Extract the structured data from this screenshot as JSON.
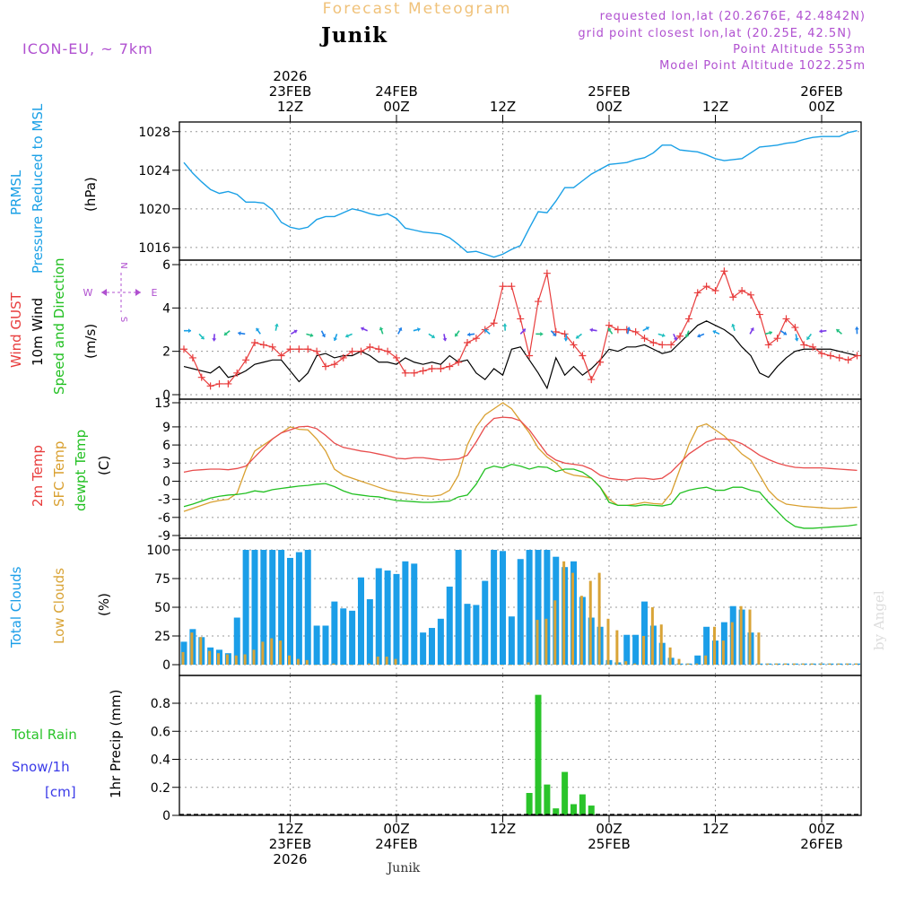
{
  "header": {
    "super_title": "Forecast Meteogram",
    "location": "Junik",
    "model": "ICON-EU, ~ 7km",
    "requested": "requested lon,lat (20.2676E, 42.4842N)",
    "grid_point": "grid point closest lon,lat (20.25E, 42.5N)",
    "point_alt": "Point Altitude 553m",
    "model_alt": "Model Point Altitude 1022.25m",
    "footer_location": "Junik",
    "watermark": "by Angel"
  },
  "colors": {
    "pressure": "#1aa0e6",
    "gust": "#e83c3c",
    "wind10m": "#000000",
    "temp2m": "#e84c4c",
    "sfc": "#d9a030",
    "dewpt": "#22c022",
    "total_cloud": "#1b9ee8",
    "low_cloud": "#d9a437",
    "rain": "#2ac42a",
    "snow": "#3a3ae8",
    "label_purple": "#b050d0"
  },
  "chart_data": [
    {
      "type": "line",
      "title": "PRMSL Pressure Reduced to MSL",
      "ylabel": "(hPa)",
      "ylim": [
        1014.5,
        1029
      ],
      "yticks": [
        1016,
        1020,
        1024,
        1028
      ],
      "x": [
        0,
        1,
        2,
        3,
        4,
        5,
        6,
        7,
        8,
        9,
        10,
        11,
        12,
        13,
        14,
        15,
        16,
        17,
        18,
        19,
        20,
        21,
        22,
        23,
        24,
        25,
        26,
        27,
        28,
        29,
        30,
        31,
        32,
        33,
        34,
        35,
        36,
        37,
        38,
        39,
        40,
        41,
        42,
        43,
        44,
        45,
        46,
        47,
        48,
        49,
        50,
        51,
        52,
        53,
        54,
        55,
        56,
        57,
        58,
        59,
        60,
        61,
        62,
        63,
        64,
        65,
        66,
        67,
        68,
        69,
        70,
        71,
        72,
        73,
        74,
        75,
        76
      ],
      "values": [
        1024.8,
        1023.7,
        1022.8,
        1022.0,
        1021.6,
        1021.8,
        1021.5,
        1020.7,
        1020.7,
        1020.6,
        1019.9,
        1018.6,
        1018.1,
        1017.9,
        1018.1,
        1018.9,
        1019.2,
        1019.2,
        1019.6,
        1020.0,
        1019.8,
        1019.5,
        1019.3,
        1019.5,
        1019.0,
        1018.0,
        1017.8,
        1017.6,
        1017.5,
        1017.4,
        1017.0,
        1016.3,
        1015.5,
        1015.6,
        1015.3,
        1015.0,
        1015.3,
        1015.8,
        1016.2,
        1018.0,
        1019.7,
        1019.6,
        1020.8,
        1022.2,
        1022.2,
        1022.9,
        1023.6,
        1024.1,
        1024.6,
        1024.7,
        1024.8,
        1025.1,
        1025.3,
        1025.8,
        1026.6,
        1026.6,
        1026.1,
        1026.0,
        1025.9,
        1025.6,
        1025.2,
        1025.0,
        1025.1,
        1025.2,
        1025.8,
        1026.4,
        1026.5,
        1026.6,
        1026.8,
        1026.9,
        1027.2,
        1027.4,
        1027.5,
        1027.5,
        1027.5,
        1027.9,
        1028.1
      ]
    },
    {
      "type": "line",
      "title": "Wind GUST / 10m Wind Speed and Direction",
      "ylabel": "(m/s)",
      "ylim": [
        0,
        6.1
      ],
      "yticks": [
        0,
        2,
        4,
        6
      ],
      "compass": {
        "n": "N",
        "s": "S",
        "w": "W",
        "e": "E"
      },
      "series": [
        {
          "name": "Wind GUST",
          "values": [
            2.1,
            1.7,
            0.8,
            0.4,
            0.5,
            0.5,
            1.0,
            1.6,
            2.4,
            2.3,
            2.2,
            1.8,
            2.1,
            2.1,
            2.1,
            2.0,
            1.3,
            1.4,
            1.7,
            2.0,
            2.0,
            2.2,
            2.1,
            2.0,
            1.7,
            1.0,
            1.0,
            1.1,
            1.2,
            1.2,
            1.3,
            1.5,
            2.4,
            2.6,
            3.0,
            3.3,
            5.0,
            5.0,
            3.5,
            1.8,
            4.3,
            5.6,
            2.9,
            2.8,
            2.3,
            1.8,
            0.7,
            1.5,
            3.2,
            3.0,
            3.0,
            2.9,
            2.6,
            2.4,
            2.3,
            2.3,
            2.7,
            3.5,
            4.7,
            5.0,
            4.8,
            5.7,
            4.5,
            4.8,
            4.6,
            3.7,
            2.3,
            2.6,
            3.5,
            3.1,
            2.3,
            2.2,
            1.9,
            1.8,
            1.7,
            1.6,
            1.8
          ]
        },
        {
          "name": "10m Wind",
          "values": [
            1.3,
            1.2,
            1.1,
            1.0,
            1.3,
            0.8,
            0.9,
            1.1,
            1.4,
            1.5,
            1.6,
            1.6,
            1.1,
            0.6,
            1.0,
            1.8,
            1.9,
            1.7,
            1.8,
            1.8,
            2.0,
            1.8,
            1.5,
            1.5,
            1.4,
            1.7,
            1.5,
            1.4,
            1.5,
            1.4,
            1.8,
            1.5,
            1.6,
            1.0,
            0.7,
            1.2,
            0.9,
            2.1,
            2.2,
            1.6,
            1.0,
            0.3,
            1.7,
            0.9,
            1.3,
            0.9,
            1.2,
            1.6,
            2.1,
            2.0,
            2.2,
            2.2,
            2.3,
            2.1,
            1.9,
            2.0,
            2.4,
            2.8,
            3.2,
            3.4,
            3.2,
            3.0,
            2.7,
            2.2,
            1.8,
            1.0,
            0.8,
            1.3,
            1.7,
            2.0,
            2.1,
            2.1,
            2.1,
            2.1,
            2.0,
            1.9,
            1.8
          ]
        }
      ],
      "wind_barbs_count": 45
    },
    {
      "type": "line",
      "title": "2m Temp / SFC Temp / dewpt Temp",
      "ylabel": "(C)",
      "ylim": [
        -9,
        13
      ],
      "yticks": [
        -9,
        -6,
        -3,
        0,
        3,
        6,
        9,
        13
      ],
      "series": [
        {
          "name": "2m Temp",
          "values": [
            1.5,
            1.8,
            1.9,
            2.0,
            2.0,
            1.9,
            2.1,
            2.5,
            4.0,
            5.5,
            7.0,
            8.0,
            8.5,
            9.0,
            9.1,
            8.7,
            7.6,
            6.3,
            5.6,
            5.3,
            5.0,
            4.8,
            4.5,
            4.2,
            3.8,
            3.7,
            3.9,
            3.9,
            3.7,
            3.5,
            3.6,
            3.7,
            4.3,
            6.5,
            9.0,
            10.4,
            10.6,
            10.5,
            10.0,
            8.5,
            6.5,
            4.5,
            3.5,
            3.0,
            2.8,
            2.6,
            2.0,
            1.0,
            0.5,
            0.3,
            0.2,
            0.5,
            0.5,
            0.3,
            0.5,
            1.5,
            3.0,
            4.5,
            5.5,
            6.5,
            7.0,
            7.0,
            6.8,
            6.2,
            5.3,
            4.3,
            3.6,
            3.0,
            2.6,
            2.3,
            2.2,
            2.2,
            2.2,
            2.1,
            2.0,
            1.9,
            1.8
          ]
        },
        {
          "name": "SFC Temp",
          "values": [
            -5.0,
            -4.5,
            -4.0,
            -3.5,
            -3.2,
            -3.0,
            -2.0,
            2.0,
            5.0,
            6.0,
            7.0,
            8.0,
            9.0,
            8.6,
            8.5,
            7.0,
            5.0,
            2.0,
            1.0,
            0.5,
            0.0,
            -0.5,
            -1.0,
            -1.5,
            -1.8,
            -2.0,
            -2.2,
            -2.4,
            -2.5,
            -2.3,
            -1.5,
            1.0,
            6.0,
            9.0,
            11.0,
            12.0,
            13.0,
            12.0,
            10.0,
            8.0,
            5.5,
            4.0,
            3.0,
            1.5,
            1.0,
            0.8,
            0.5,
            -1.0,
            -3.0,
            -4.0,
            -4.0,
            -3.8,
            -3.5,
            -3.7,
            -3.8,
            -2.0,
            2.0,
            6.0,
            9.0,
            9.5,
            8.5,
            7.5,
            6.0,
            4.5,
            3.5,
            1.0,
            -1.5,
            -3.0,
            -3.8,
            -4.0,
            -4.2,
            -4.3,
            -4.4,
            -4.5,
            -4.5,
            -4.4,
            -4.3
          ]
        },
        {
          "name": "dewpt Temp",
          "values": [
            -4.2,
            -3.8,
            -3.3,
            -2.8,
            -2.5,
            -2.3,
            -2.2,
            -2.0,
            -1.6,
            -1.8,
            -1.4,
            -1.2,
            -1.0,
            -0.8,
            -0.7,
            -0.5,
            -0.4,
            -0.9,
            -1.6,
            -2.1,
            -2.3,
            -2.5,
            -2.6,
            -2.9,
            -3.2,
            -3.3,
            -3.4,
            -3.5,
            -3.5,
            -3.4,
            -3.3,
            -2.6,
            -2.3,
            -0.5,
            2.0,
            2.5,
            2.2,
            2.8,
            2.5,
            2.0,
            2.4,
            2.3,
            1.6,
            2.0,
            2.0,
            1.5,
            0.5,
            -1.0,
            -3.5,
            -4.0,
            -4.0,
            -4.1,
            -3.9,
            -4.0,
            -4.1,
            -3.8,
            -2.0,
            -1.5,
            -1.2,
            -1.0,
            -1.5,
            -1.5,
            -1.0,
            -1.0,
            -1.5,
            -1.8,
            -3.5,
            -5.0,
            -6.5,
            -7.5,
            -7.8,
            -7.8,
            -7.7,
            -7.6,
            -7.5,
            -7.4,
            -7.2
          ]
        }
      ]
    },
    {
      "type": "bar",
      "title": "Total Clouds / Low Clouds",
      "ylabel": "(%)",
      "ylim": [
        0,
        100
      ],
      "yticks": [
        0,
        25,
        50,
        75,
        100
      ],
      "series": [
        {
          "name": "Total Clouds",
          "values": [
            20,
            31,
            24,
            15,
            13,
            10,
            41,
            100,
            100,
            100,
            100,
            100,
            93,
            98,
            100,
            34,
            34,
            55,
            49,
            47,
            76,
            57,
            84,
            82,
            79,
            90,
            88,
            28,
            32,
            40,
            68,
            100,
            53,
            52,
            73,
            100,
            99,
            42,
            92,
            100,
            100,
            100,
            94,
            85,
            90,
            59,
            41,
            33,
            4,
            2,
            26,
            26,
            55,
            34,
            19,
            6,
            1,
            1,
            8,
            33,
            21,
            37,
            51,
            48,
            28,
            1,
            1,
            1,
            1,
            1,
            1,
            1,
            1,
            1,
            1,
            1,
            1
          ]
        },
        {
          "name": "Low Clouds",
          "values": [
            11,
            28,
            24,
            12,
            10,
            9,
            8,
            9,
            13,
            20,
            23,
            21,
            8,
            5,
            4,
            0,
            0,
            1,
            0,
            0,
            0,
            1,
            7,
            7,
            5,
            0,
            0,
            0,
            0,
            0,
            0,
            0,
            0,
            0,
            0,
            0,
            0,
            0,
            0,
            2,
            39,
            40,
            56,
            90,
            80,
            60,
            73,
            80,
            40,
            30,
            3,
            1,
            25,
            50,
            35,
            15,
            5,
            1,
            1,
            8,
            33,
            21,
            37,
            51,
            48,
            28,
            1,
            1,
            1,
            1,
            1,
            1,
            1,
            1,
            1,
            1,
            1
          ]
        }
      ]
    },
    {
      "type": "bar",
      "title": "Total Rain / Snow/1h",
      "ylabel": "1hr Precip (mm)",
      "snow_unit": "[cm]",
      "ylim": [
        0,
        0.96
      ],
      "yticks": [
        "0",
        "0.2",
        "0.4",
        "0.6",
        "0.8"
      ],
      "series": [
        {
          "name": "Total Rain",
          "x": [
            39,
            40,
            41,
            42,
            43,
            44,
            45,
            46
          ],
          "values": [
            0.16,
            0.86,
            0.22,
            0.05,
            0.31,
            0.08,
            0.15,
            0.07
          ]
        },
        {
          "name": "Snow/1h",
          "x": [],
          "values": []
        }
      ]
    }
  ],
  "panel_labels": {
    "pressure": {
      "line1": "PRMSL",
      "line2": "Pressure Reduced to MSL",
      "unit": "(hPa)"
    },
    "wind": {
      "gust": "Wind GUST",
      "wind": "10m Wind",
      "dir": "Speed and Direction",
      "unit": "(m/s)"
    },
    "temp": {
      "t2m": "2m Temp",
      "sfc": "SFC Temp",
      "dew": "dewpt Temp",
      "unit": "(C)"
    },
    "cloud": {
      "total": "Total Clouds",
      "low": "Low Clouds",
      "unit": "(%)"
    },
    "precip": {
      "rain": "Total Rain",
      "snow": "Snow/1h",
      "snow_unit": "[cm]",
      "unit": "1hr Precip (mm)"
    }
  },
  "time_axis": {
    "top": [
      {
        "x": 12,
        "lines": [
          "2026",
          "23FEB",
          "12Z"
        ]
      },
      {
        "x": 24,
        "lines": [
          "24FEB",
          "00Z"
        ]
      },
      {
        "x": 36,
        "lines": [
          "12Z"
        ]
      },
      {
        "x": 48,
        "lines": [
          "25FEB",
          "00Z"
        ]
      },
      {
        "x": 60,
        "lines": [
          "12Z"
        ]
      },
      {
        "x": 72,
        "lines": [
          "26FEB",
          "00Z"
        ]
      }
    ],
    "bottom": [
      {
        "x": 12,
        "lines": [
          "12Z",
          "23FEB",
          "2026"
        ]
      },
      {
        "x": 24,
        "lines": [
          "00Z",
          "24FEB"
        ]
      },
      {
        "x": 36,
        "lines": [
          "12Z"
        ]
      },
      {
        "x": 48,
        "lines": [
          "00Z",
          "25FEB"
        ]
      },
      {
        "x": 60,
        "lines": [
          "12Z"
        ]
      },
      {
        "x": 72,
        "lines": [
          "00Z",
          "26FEB"
        ]
      }
    ]
  }
}
